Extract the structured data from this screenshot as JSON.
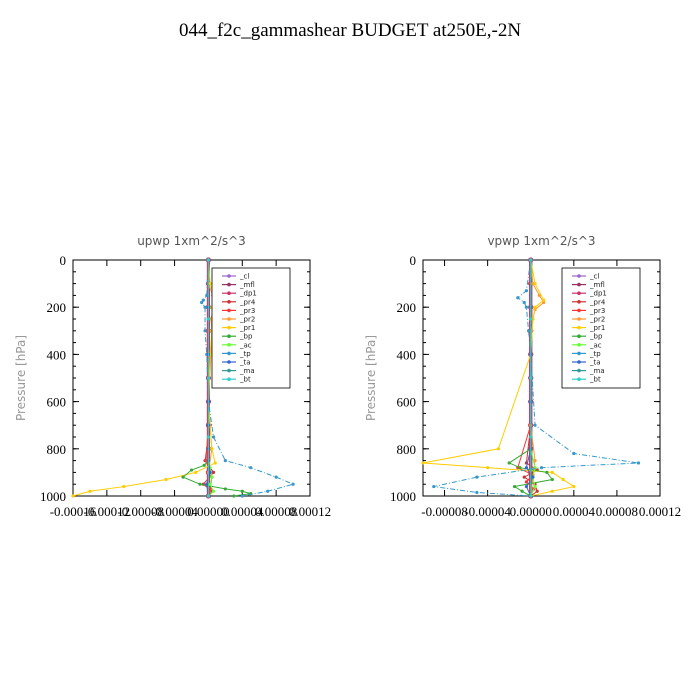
{
  "title": "044_f2c_gammashear  BUDGET at250E,-2N",
  "chart_data": [
    {
      "type": "line",
      "title": "upwp   1xm^2/s^3",
      "ylabel": "Pressure  [hPa]",
      "xlim": [
        -0.00016,
        0.00012
      ],
      "ylim": [
        1000,
        0
      ],
      "xticks": [
        -0.00016,
        -0.00012,
        -8e-05,
        -4e-05,
        0.0,
        4e-05,
        8e-05,
        0.00012
      ],
      "xtick_labels": [
        "-0.00016",
        "-0.00012",
        "-0.00008",
        "-0.00004",
        "0.00000",
        "0.00004",
        "0.00008",
        "0.00012"
      ],
      "yticks": [
        0,
        200,
        400,
        600,
        800,
        1000
      ],
      "ytick_labels": [
        "0",
        "200",
        "400",
        "600",
        "800",
        "1000"
      ],
      "legend_position": "top-right",
      "series": [
        {
          "name": "_cl",
          "color": "#9966cc",
          "x": [
            0,
            0,
            0,
            0,
            0,
            0,
            0,
            0,
            0,
            0,
            0
          ],
          "y": [
            0,
            100,
            200,
            300,
            400,
            500,
            600,
            700,
            800,
            900,
            1000
          ]
        },
        {
          "name": "_mfl",
          "color": "#993366",
          "x": [
            0,
            0,
            0,
            0,
            0,
            0,
            0,
            0,
            0,
            0,
            0
          ],
          "y": [
            0,
            100,
            200,
            300,
            400,
            500,
            600,
            700,
            800,
            900,
            1000
          ]
        },
        {
          "name": "_dp1",
          "color": "#cc3366",
          "x": [
            0,
            0,
            0,
            0,
            0,
            0,
            0,
            0,
            0,
            0,
            0
          ],
          "y": [
            0,
            100,
            200,
            300,
            400,
            500,
            600,
            700,
            800,
            900,
            1000
          ]
        },
        {
          "name": "_pr4",
          "color": "#cc3333",
          "x": [
            0,
            0,
            0,
            0,
            0,
            0,
            0,
            2e-06,
            -4e-06,
            6e-06,
            -6e-06,
            4e-06,
            0
          ],
          "y": [
            0,
            100,
            200,
            300,
            400,
            500,
            600,
            700,
            850,
            900,
            950,
            980,
            1000
          ]
        },
        {
          "name": "_pr3",
          "color": "#ff3333",
          "x": [
            0,
            0,
            0,
            0,
            0,
            0,
            0,
            0,
            -3e-06,
            4e-06,
            2e-06,
            0
          ],
          "y": [
            0,
            100,
            200,
            300,
            400,
            500,
            600,
            700,
            850,
            920,
            970,
            1000
          ]
        },
        {
          "name": "_pr2",
          "color": "#ff9933",
          "x": [
            0,
            0,
            5e-06,
            8e-06,
            3e-06,
            4e-06,
            3e-06,
            0,
            4e-06,
            0,
            0
          ],
          "y": [
            0,
            100,
            150,
            180,
            250,
            300,
            400,
            600,
            800,
            900,
            1000
          ]
        },
        {
          "name": "_pr1",
          "color": "#ffcc00",
          "x": [
            0,
            2e-06,
            8e-06,
            4e-06,
            5e-06,
            4e-06,
            2e-06,
            0,
            4e-06,
            8e-06,
            -1.5e-05,
            -5e-05,
            -0.0001,
            -0.00014,
            -0.00016
          ],
          "y": [
            0,
            100,
            170,
            200,
            250,
            300,
            400,
            600,
            800,
            860,
            900,
            930,
            960,
            980,
            1000
          ]
        },
        {
          "name": "_bp",
          "color": "#33aa33",
          "x": [
            0,
            0,
            0,
            0,
            0,
            0,
            0,
            -5e-06,
            -2e-05,
            -3e-05,
            -1e-05,
            2e-05,
            4e-05,
            5e-05,
            3e-05
          ],
          "y": [
            0,
            200,
            400,
            600,
            700,
            800,
            850,
            870,
            890,
            920,
            950,
            970,
            980,
            990,
            1000
          ]
        },
        {
          "name": "_ac",
          "color": "#66ff33",
          "x": [
            0,
            0,
            0,
            0,
            0,
            0,
            2e-06,
            4e-06,
            2e-06,
            6e-06,
            0
          ],
          "y": [
            0,
            200,
            400,
            600,
            800,
            850,
            880,
            920,
            950,
            980,
            1000
          ]
        },
        {
          "name": "_tp",
          "color": "#3399cc",
          "x": [
            0,
            -2e-06,
            -6e-06,
            -8e-06,
            -4e-06,
            -4e-06,
            -2e-06,
            0,
            6e-06,
            2e-05,
            5e-05,
            8e-05,
            0.0001,
            7e-05,
            4e-05
          ],
          "y": [
            0,
            150,
            170,
            180,
            200,
            300,
            400,
            600,
            750,
            850,
            880,
            920,
            950,
            980,
            1000
          ]
        },
        {
          "name": "_ta",
          "color": "#3366cc",
          "x": [
            0,
            0,
            0,
            0,
            0,
            0,
            0,
            2e-06,
            -2e-06,
            0
          ],
          "y": [
            0,
            200,
            400,
            600,
            700,
            800,
            850,
            900,
            950,
            1000
          ]
        },
        {
          "name": "_ma",
          "color": "#339999",
          "x": [
            0,
            0,
            0,
            0,
            0
          ],
          "y": [
            0,
            250,
            500,
            750,
            1000
          ]
        },
        {
          "name": "_bt",
          "color": "#33cccc",
          "x": [
            0,
            0,
            0,
            0,
            0
          ],
          "y": [
            0,
            250,
            500,
            750,
            1000
          ]
        }
      ]
    },
    {
      "type": "line",
      "title": "vpwp   1xm^2/s^3",
      "ylabel": "Pressure  [hPa]",
      "xlim": [
        -0.0001,
        0.00012
      ],
      "ylim": [
        1000,
        0
      ],
      "xticks": [
        -8e-05,
        -4e-05,
        0.0,
        4e-05,
        8e-05,
        0.00012
      ],
      "xtick_labels": [
        "-0.00008",
        "-0.00004",
        "0.00000",
        "0.00004",
        "0.00008",
        "0.00012"
      ],
      "yticks": [
        0,
        200,
        400,
        600,
        800,
        1000
      ],
      "ytick_labels": [
        "0",
        "200",
        "400",
        "600",
        "800",
        "1000"
      ],
      "legend_position": "top-right",
      "series": [
        {
          "name": "_cl",
          "color": "#9966cc",
          "x": [
            0,
            0,
            0,
            0,
            0,
            0,
            0,
            0,
            0,
            0,
            0
          ],
          "y": [
            0,
            100,
            200,
            300,
            400,
            500,
            600,
            700,
            800,
            900,
            1000
          ]
        },
        {
          "name": "_mfl",
          "color": "#993366",
          "x": [
            0,
            0,
            0,
            0,
            0,
            0,
            0,
            0,
            0,
            0,
            0
          ],
          "y": [
            0,
            100,
            200,
            300,
            400,
            500,
            600,
            700,
            800,
            900,
            1000
          ]
        },
        {
          "name": "_dp1",
          "color": "#cc3366",
          "x": [
            0,
            0,
            0,
            0,
            0,
            0,
            0,
            0,
            0,
            0,
            0
          ],
          "y": [
            0,
            100,
            200,
            300,
            400,
            500,
            600,
            700,
            800,
            900,
            1000
          ]
        },
        {
          "name": "_pr4",
          "color": "#cc3333",
          "x": [
            0,
            0,
            0,
            0,
            0,
            0,
            -4e-06,
            6e-06,
            -6e-06,
            4e-06,
            6e-06,
            0
          ],
          "y": [
            0,
            100,
            200,
            300,
            400,
            700,
            860,
            890,
            920,
            950,
            980,
            1000
          ]
        },
        {
          "name": "_pr3",
          "color": "#ff3333",
          "x": [
            0,
            0,
            0,
            0,
            0,
            0,
            -1.2e-05,
            2e-06,
            -4e-06,
            3e-06,
            0
          ],
          "y": [
            0,
            100,
            200,
            300,
            400,
            700,
            880,
            910,
            940,
            970,
            1000
          ]
        },
        {
          "name": "_pr2",
          "color": "#ff9933",
          "x": [
            0,
            2e-06,
            8e-06,
            1.2e-05,
            4e-06,
            2e-06,
            0,
            0,
            4e-06,
            0
          ],
          "y": [
            0,
            100,
            150,
            180,
            210,
            250,
            400,
            700,
            850,
            1000
          ]
        },
        {
          "name": "_pr1",
          "color": "#ffcc00",
          "x": [
            0,
            4e-06,
            1.2e-05,
            4e-06,
            2e-06,
            0,
            -3e-05,
            -0.0001,
            -4e-05,
            2e-05,
            3e-05,
            4e-05,
            2e-05,
            0
          ],
          "y": [
            0,
            100,
            170,
            200,
            250,
            400,
            800,
            860,
            880,
            900,
            930,
            960,
            980,
            1000
          ]
        },
        {
          "name": "_bp",
          "color": "#33aa33",
          "x": [
            0,
            0,
            0,
            0,
            0,
            -2e-05,
            -1e-05,
            1.5e-05,
            2e-05,
            -1.5e-05,
            -8e-06,
            0
          ],
          "y": [
            0,
            200,
            400,
            600,
            800,
            860,
            880,
            900,
            930,
            960,
            980,
            1000
          ]
        },
        {
          "name": "_ac",
          "color": "#66ff33",
          "x": [
            0,
            0,
            0,
            0,
            0,
            4e-06,
            2e-06,
            4e-06,
            0
          ],
          "y": [
            0,
            200,
            400,
            600,
            800,
            880,
            920,
            960,
            1000
          ]
        },
        {
          "name": "_tp",
          "color": "#3399cc",
          "x": [
            0,
            -4e-06,
            -1.2e-05,
            -6e-06,
            -4e-06,
            -2e-06,
            0,
            4e-06,
            4e-05,
            0.0001,
            1e-05,
            -5e-05,
            -9e-05,
            -5e-05,
            0
          ],
          "y": [
            0,
            130,
            160,
            180,
            200,
            300,
            400,
            700,
            820,
            860,
            880,
            920,
            960,
            985,
            1000
          ]
        },
        {
          "name": "_ta",
          "color": "#3366cc",
          "x": [
            0,
            0,
            0,
            0,
            0,
            -4e-06,
            2e-06,
            -4e-06,
            0
          ],
          "y": [
            0,
            200,
            400,
            600,
            800,
            880,
            920,
            960,
            1000
          ]
        },
        {
          "name": "_ma",
          "color": "#339999",
          "x": [
            0,
            0,
            0,
            0,
            0
          ],
          "y": [
            0,
            250,
            500,
            750,
            1000
          ]
        },
        {
          "name": "_bt",
          "color": "#33cccc",
          "x": [
            0,
            0,
            0,
            0,
            0
          ],
          "y": [
            0,
            250,
            500,
            750,
            1000
          ]
        }
      ]
    }
  ]
}
